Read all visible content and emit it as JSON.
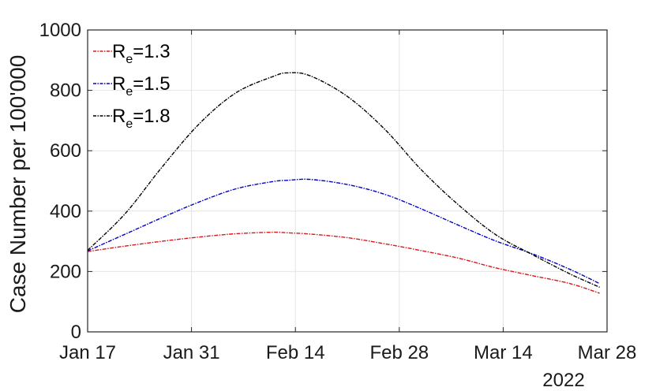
{
  "chart_data": {
    "type": "line",
    "title": "",
    "xlabel": "",
    "ylabel": "Case Number per 100'000",
    "ylim": [
      0,
      1000
    ],
    "xlim": [
      "2022-01-17",
      "2022-03-28"
    ],
    "grid": true,
    "legend_position": "top-left",
    "x_ticks": [
      "Jan 17",
      "Jan 31",
      "Feb 14",
      "Feb 28",
      "Mar 14",
      "Mar 28"
    ],
    "x_secondary_label": "2022",
    "y_ticks": [
      "0",
      "200",
      "400",
      "600",
      "800",
      "1000"
    ],
    "x": [
      "2022-01-17",
      "2022-01-22",
      "2022-01-27",
      "2022-02-01",
      "2022-02-06",
      "2022-02-11",
      "2022-02-13",
      "2022-02-16",
      "2022-02-21",
      "2022-02-26",
      "2022-03-03",
      "2022-03-08",
      "2022-03-13",
      "2022-03-18",
      "2022-03-23",
      "2022-03-27"
    ],
    "series": [
      {
        "name": "R_e=1.3",
        "label_base": "R",
        "label_sub": "e",
        "label_rest": "=1.3",
        "color": "#d7191c",
        "values": [
          266,
          284,
          300,
          314,
          325,
          330,
          328,
          324,
          312,
          292,
          269,
          244,
          212,
          186,
          160,
          128
        ]
      },
      {
        "name": "R_e=1.5",
        "label_base": "R",
        "label_sub": "e",
        "label_rest": "=1.5",
        "color": "#0000cc",
        "values": [
          268,
          323,
          378,
          430,
          474,
          498,
          502,
          505,
          488,
          456,
          407,
          353,
          301,
          258,
          207,
          160
        ]
      },
      {
        "name": "R_e=1.8",
        "label_base": "R",
        "label_sub": "e",
        "label_rest": "=1.8",
        "color": "#000000",
        "values": [
          270,
          390,
          545,
          688,
          792,
          846,
          858,
          848,
          780,
          672,
          536,
          420,
          322,
          255,
          192,
          148
        ]
      }
    ]
  }
}
